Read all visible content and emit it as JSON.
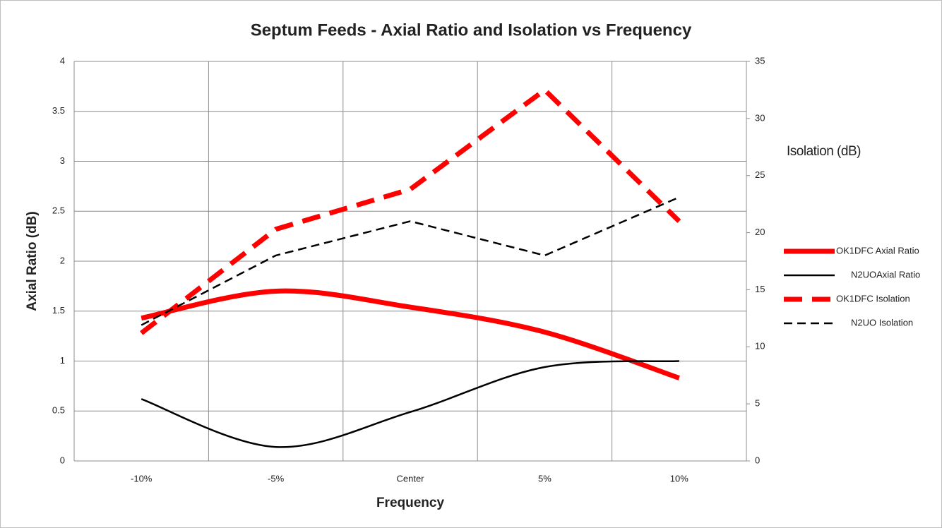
{
  "chart_data": {
    "type": "line",
    "title": "Septum Feeds - Axial Ratio and Isolation vs Frequency",
    "x_label": "Frequency",
    "y_label": "Axial Ratio (dB)",
    "y2_label": "Isolation (dB)",
    "categories": [
      "-10%",
      "-5%",
      "Center",
      "5%",
      "10%"
    ],
    "ylim": [
      0,
      4
    ],
    "yticks": [
      0,
      0.5,
      1,
      1.5,
      2,
      2.5,
      3,
      3.5,
      4
    ],
    "y2lim": [
      0,
      35
    ],
    "y2ticks": [
      0,
      5,
      10,
      15,
      20,
      25,
      30,
      35
    ],
    "grid": true,
    "legend": "right",
    "series": [
      {
        "name": "OK1DFC Axial Ratio",
        "color": "#ff0000",
        "line_style": "solid",
        "line_weight": "thick",
        "smooth": true,
        "values": [
          1.43,
          1.7,
          1.54,
          1.29,
          0.83
        ]
      },
      {
        "name": "N2UOAxial Ratio",
        "color": "#000000",
        "line_style": "solid",
        "line_weight": "thin",
        "smooth": true,
        "values": [
          0.62,
          0.14,
          0.49,
          0.94,
          1.0
        ]
      },
      {
        "name": "OK1DFC Isolation",
        "color": "#ff0000",
        "line_style": "dashed",
        "line_weight": "thick",
        "smooth": false,
        "axis": "y2",
        "values": [
          11.2,
          20.3,
          23.8,
          32.5,
          21.0
        ]
      },
      {
        "name": "N2UO Isolation",
        "color": "#000000",
        "line_style": "dashed",
        "line_weight": "thin",
        "smooth": false,
        "axis": "y2",
        "values": [
          11.9,
          18.0,
          21.0,
          18.0,
          23.1
        ]
      }
    ]
  }
}
